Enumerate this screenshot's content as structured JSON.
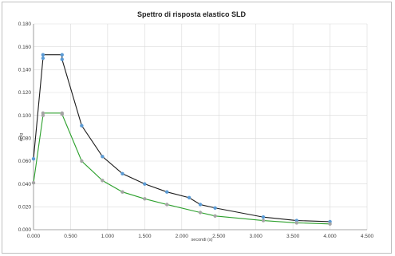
{
  "chart_data": {
    "type": "line",
    "title": "Spettro di risposta elastico SLD",
    "xlabel": "secondi (s)",
    "ylabel": "ag/g",
    "xlim": [
      0,
      4.5
    ],
    "ylim": [
      0,
      0.18
    ],
    "x_ticks": [
      "0.000",
      "0.500",
      "1.000",
      "1.500",
      "2.000",
      "2.500",
      "3.000",
      "3.500",
      "4.000",
      "4.500"
    ],
    "y_ticks": [
      "0.000",
      "0.020",
      "0.040",
      "0.060",
      "0.080",
      "0.100",
      "0.120",
      "0.140",
      "0.160",
      "0.180"
    ],
    "grid": true,
    "series": [
      {
        "color": "#1a1a1a",
        "marker_color": "#5b9bd5",
        "points": [
          [
            0.0,
            0.062
          ],
          [
            0.128,
            0.15
          ],
          [
            0.128,
            0.153
          ],
          [
            0.385,
            0.153
          ],
          [
            0.385,
            0.149
          ],
          [
            0.65,
            0.091
          ],
          [
            0.93,
            0.064
          ],
          [
            1.2,
            0.049
          ],
          [
            1.5,
            0.04
          ],
          [
            1.8,
            0.033
          ],
          [
            2.1,
            0.028
          ],
          [
            2.25,
            0.022
          ],
          [
            2.45,
            0.019
          ],
          [
            3.1,
            0.011
          ],
          [
            3.55,
            0.008
          ],
          [
            4.0,
            0.007
          ]
        ]
      },
      {
        "color": "#2ca02c",
        "marker_color": "#a5a5a5",
        "points": [
          [
            0.0,
            0.041
          ],
          [
            0.128,
            0.1
          ],
          [
            0.128,
            0.102
          ],
          [
            0.385,
            0.102
          ],
          [
            0.385,
            0.101
          ],
          [
            0.65,
            0.06
          ],
          [
            0.93,
            0.043
          ],
          [
            1.2,
            0.033
          ],
          [
            1.5,
            0.027
          ],
          [
            1.8,
            0.022
          ],
          [
            2.25,
            0.015
          ],
          [
            2.45,
            0.012
          ],
          [
            3.1,
            0.008
          ],
          [
            3.55,
            0.006
          ],
          [
            4.0,
            0.005
          ]
        ]
      }
    ]
  }
}
